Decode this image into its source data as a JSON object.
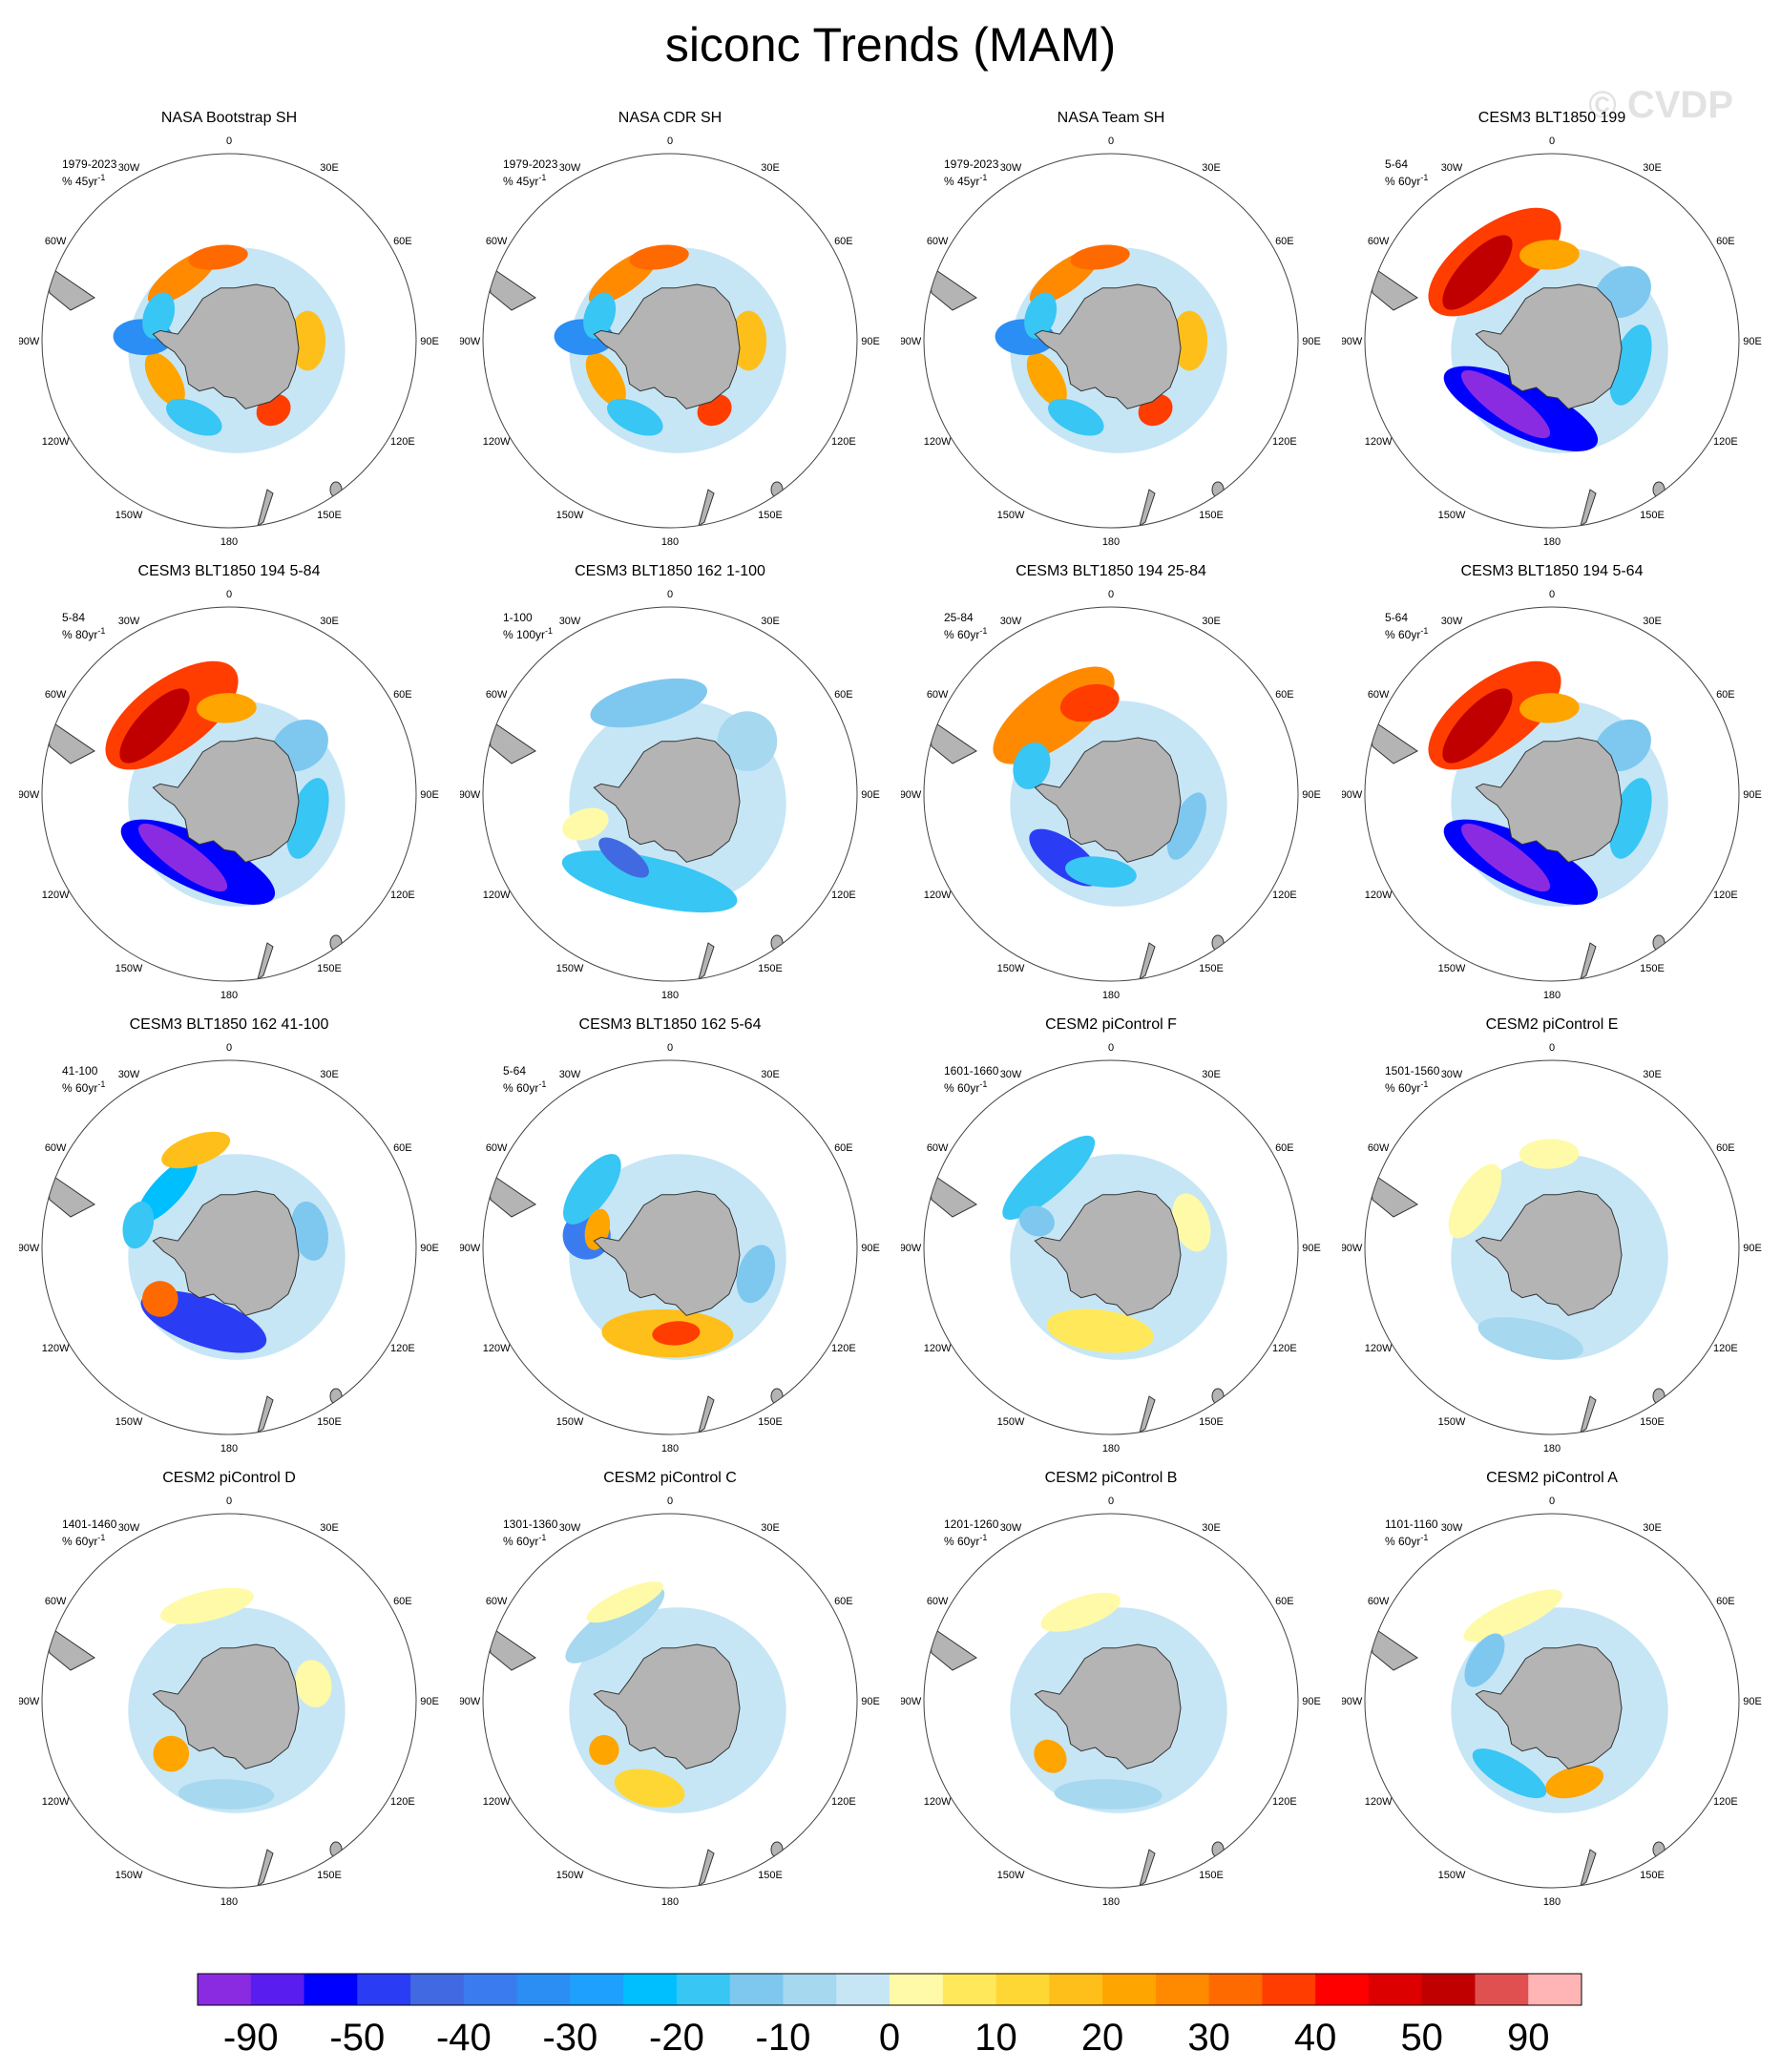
{
  "title": "siconc Trends (MAM)",
  "watermark": "© CVDP",
  "lon_labels": [
    "0",
    "30E",
    "60E",
    "90E",
    "120E",
    "150E",
    "180",
    "150W",
    "120W",
    "90W",
    "60W",
    "30W"
  ],
  "panels": [
    {
      "title": "NASA Bootstrap SH",
      "period": "1979-2023",
      "units": "% 45yr",
      "pattern": "obs"
    },
    {
      "title": "NASA CDR SH",
      "period": "1979-2023",
      "units": "% 45yr",
      "pattern": "obs"
    },
    {
      "title": "NASA Team SH",
      "period": "1979-2023",
      "units": "% 45yr",
      "pattern": "obs"
    },
    {
      "title": "CESM3 BLT1850 199",
      "period": "5-64",
      "units": "% 60yr",
      "pattern": "strong"
    },
    {
      "title": "CESM3 BLT1850 194 5-84",
      "period": "5-84",
      "units": "% 80yr",
      "pattern": "strong"
    },
    {
      "title": "CESM3 BLT1850 162 1-100",
      "period": "1-100",
      "units": "% 100yr",
      "pattern": "weakneg"
    },
    {
      "title": "CESM3 BLT1850 194 25-84",
      "period": "25-84",
      "units": "% 60yr",
      "pattern": "mid"
    },
    {
      "title": "CESM3 BLT1850 194 5-64",
      "period": "5-64",
      "units": "% 60yr",
      "pattern": "strong"
    },
    {
      "title": "CESM3 BLT1850 162 41-100",
      "period": "41-100",
      "units": "% 60yr",
      "pattern": "mixed"
    },
    {
      "title": "CESM3 BLT1850 162 5-64",
      "period": "5-64",
      "units": "% 60yr",
      "pattern": "rev"
    },
    {
      "title": "CESM2 piControl F",
      "period": "1601-1660",
      "units": "% 60yr",
      "pattern": "weak1"
    },
    {
      "title": "CESM2 piControl E",
      "period": "1501-1560",
      "units": "% 60yr",
      "pattern": "weak2"
    },
    {
      "title": "CESM2 piControl D",
      "period": "1401-1460",
      "units": "% 60yr",
      "pattern": "weak3"
    },
    {
      "title": "CESM2 piControl C",
      "period": "1301-1360",
      "units": "% 60yr",
      "pattern": "weak4"
    },
    {
      "title": "CESM2 piControl B",
      "period": "1201-1260",
      "units": "% 60yr",
      "pattern": "weak5"
    },
    {
      "title": "CESM2 piControl A",
      "period": "1101-1160",
      "units": "% 60yr",
      "pattern": "weak6"
    }
  ],
  "colorbar": {
    "colors": [
      "#8a2be2",
      "#5a1df0",
      "#0000ff",
      "#2a3df5",
      "#4169e1",
      "#3a7cf0",
      "#2b8ef5",
      "#1ea0ff",
      "#00bfff",
      "#38c6f4",
      "#7ec8f0",
      "#a6d8f0",
      "#c6e6f6",
      "#fffaa8",
      "#ffe95a",
      "#ffd735",
      "#ffbf1b",
      "#ffa500",
      "#ff8a00",
      "#ff6a00",
      "#ff3d00",
      "#ff0000",
      "#dd0000",
      "#c00000",
      "#e05050",
      "#ffb5b5"
    ],
    "labels": [
      "-90",
      "-50",
      "-40",
      "-30",
      "-20",
      "-10",
      "0",
      "10",
      "20",
      "30",
      "40",
      "50",
      "90"
    ]
  },
  "chart_data": {
    "type": "heatmap",
    "title": "siconc Trends (MAM)",
    "variable": "siconc",
    "season": "MAM",
    "projection": "south polar stereographic",
    "colorbar_levels": [
      -90,
      -50,
      -40,
      -30,
      -20,
      -10,
      0,
      10,
      20,
      30,
      40,
      50,
      90
    ],
    "panels_count": 16
  }
}
